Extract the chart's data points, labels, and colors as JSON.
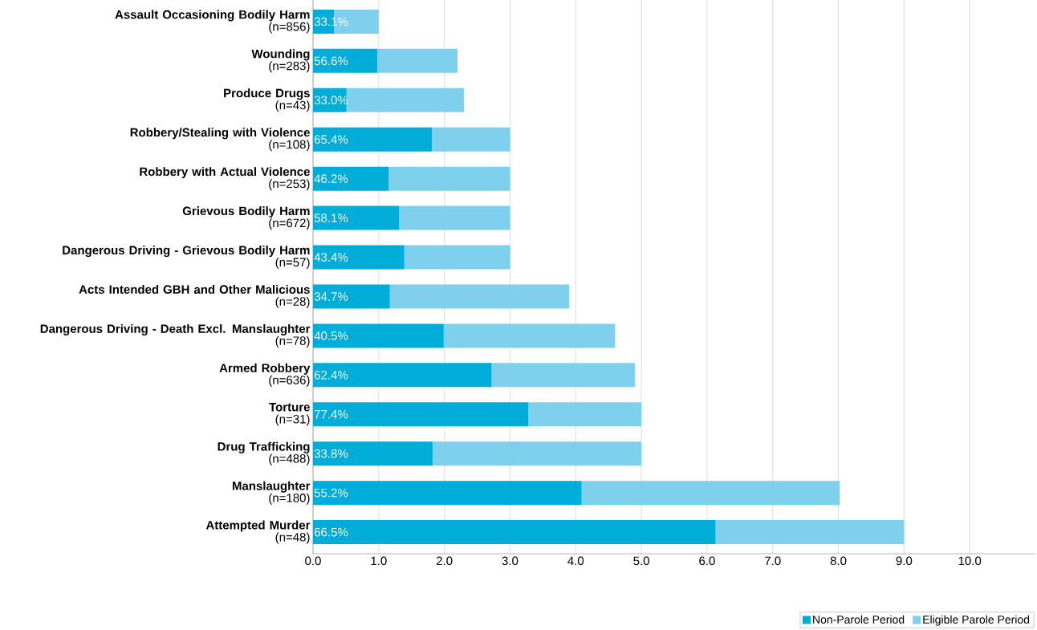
{
  "chart_data": {
    "type": "bar",
    "orientation": "horizontal",
    "stacked": true,
    "categories": [
      "**Assault Occasioning Bodily Harm**\n(n=856)",
      "**Wounding**\n(n=283)",
      "**Produce Drugs**\n(n=43)",
      "**Robbery/Stealing with Violence**\n(n=108)",
      "**Robbery with Actual Violence**\n(n=253)",
      "**Grievous Bodily Harm**\n(n=672)",
      "**Dangerous Driving - Grievous Bodily Harm**\n(n=57)",
      "**Acts Intended GBH and Other Malicious**\n(n=28)",
      "**Dangerous Driving - Death Excl. Manslaughter**\n(n=78)",
      "**Armed Robbery**\n(n=636)",
      "**Torture**\n(n=31)",
      "**Drug Trafficking**\n(n=488)",
      "**Manslaughter**\n(n=180)",
      "**Attempted Murder**\n(n=48)"
    ],
    "series": [
      {
        "name": "Non-Parole Period",
        "color": "#00acd8",
        "values": [
          0.32,
          0.98,
          0.51,
          1.81,
          1.15,
          1.31,
          1.39,
          1.17,
          1.99,
          2.72,
          3.28,
          1.82,
          4.09,
          6.13
        ]
      },
      {
        "name": "Eligible Parole Period",
        "color": "#7fd0ec",
        "values": [
          0.68,
          1.22,
          1.79,
          1.19,
          1.85,
          1.69,
          1.61,
          2.73,
          2.61,
          2.18,
          1.72,
          3.18,
          3.93,
          2.87
        ]
      }
    ],
    "annotations": [
      "33.1%",
      "56.6%",
      "33.0%",
      "65.4%",
      "46.2%",
      "58.1%",
      "43.4%",
      "34.7%",
      "40.5%",
      "62.4%",
      "77.4%",
      "33.8%",
      "55.2%",
      "66.5%"
    ],
    "xlim": [
      0,
      11
    ],
    "xticks": [
      {
        "value": 0,
        "label": "0.0"
      },
      {
        "value": 1,
        "label": "1.0"
      },
      {
        "value": 2,
        "label": "2.0"
      },
      {
        "value": 3,
        "label": "3.0"
      },
      {
        "value": 4,
        "label": "4.0"
      },
      {
        "value": 5,
        "label": "5.0"
      },
      {
        "value": 6,
        "label": "6.0"
      },
      {
        "value": 7,
        "label": "7.0"
      },
      {
        "value": 8,
        "label": "8.0"
      },
      {
        "value": 9,
        "label": "9.0"
      },
      {
        "value": 10,
        "label": "10.0"
      }
    ],
    "grid": "x",
    "legend": "bottom right"
  }
}
